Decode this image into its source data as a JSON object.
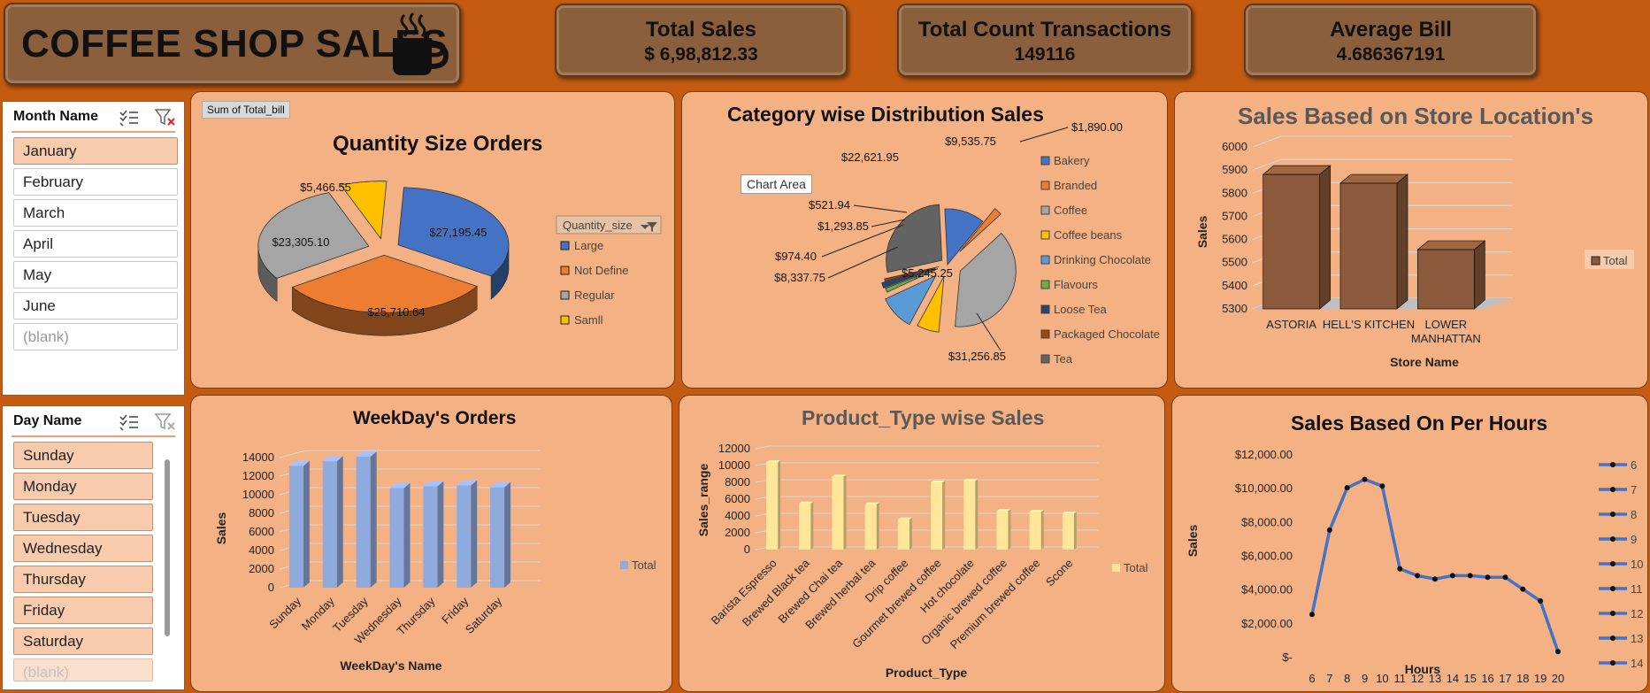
{
  "header": {
    "title": "COFFEE SHOP SALES",
    "kpis": [
      {
        "label": "Total Sales",
        "value": "$ 6,98,812.33"
      },
      {
        "label": "Total Count Transactions",
        "value": "149116"
      },
      {
        "label": "Average Bill",
        "value": "4.686367191"
      }
    ]
  },
  "month_slicer": {
    "title": "Month Name",
    "items": [
      "January",
      "February",
      "March",
      "April",
      "May",
      "June",
      "(blank)"
    ],
    "selected": "January"
  },
  "day_slicer": {
    "title": "Day Name",
    "items": [
      "Sunday",
      "Monday",
      "Tuesday",
      "Wednesday",
      "Thursday",
      "Friday",
      "Saturday",
      "(blank)"
    ]
  },
  "quantity_panel": {
    "field_button": "Sum of Total_bill",
    "legend_title": "Quantity_size",
    "chart_data": {
      "type": "pie",
      "title": "Quantity Size Orders",
      "categories": [
        "Large",
        "Not Define",
        "Regular",
        "Samll"
      ],
      "values": [
        27195.45,
        25710.64,
        23305.1,
        5466.55
      ],
      "labels": [
        "$27,195.45",
        "$25,710.64",
        "$23,305.10",
        "$5,466.55"
      ],
      "colors": [
        "#4472c4",
        "#ed7d31",
        "#a5a5a5",
        "#ffc000"
      ],
      "legend": "right"
    }
  },
  "category_panel": {
    "tooltip": "Chart Area",
    "chart_data": {
      "type": "pie",
      "title": "Category wise Distribution Sales",
      "categories": [
        "Bakery",
        "Branded",
        "Coffee",
        "Coffee beans",
        "Drinking Chocolate",
        "Flavours",
        "Loose Tea",
        "Packaged Chocolate",
        "Tea"
      ],
      "values": [
        9535.75,
        1890.0,
        31256.85,
        5245.25,
        8337.75,
        974.4,
        1293.85,
        521.94,
        22621.95
      ],
      "labels": [
        "$9,535.75",
        "$1,890.00",
        "$31,256.85",
        "$5,245.25",
        "$8,337.75",
        "$974.40",
        "$1,293.85",
        "$521.94",
        "$22,621.95"
      ],
      "colors": [
        "#4472c4",
        "#ed7d31",
        "#a5a5a5",
        "#ffc000",
        "#5b9bd5",
        "#70ad47",
        "#264478",
        "#9e480e",
        "#636363"
      ],
      "legend": "right"
    }
  },
  "store_panel": {
    "chart_data": {
      "type": "bar",
      "title": "Sales Based on Store Location's",
      "categories": [
        "ASTORIA",
        "HELL'S KITCHEN",
        "LOWER MANHATTAN"
      ],
      "category_lines": [
        [
          "ASTORIA"
        ],
        [
          "HELL'S KITCHEN"
        ],
        [
          "LOWER",
          "MANHATTAN"
        ]
      ],
      "values": [
        5881,
        5843,
        5556
      ],
      "ylim": [
        5300,
        6000
      ],
      "yticks": [
        "5300",
        "5400",
        "5500",
        "5600",
        "5700",
        "5800",
        "5900",
        "6000"
      ],
      "xlabel": "Store Name",
      "ylabel": "Sales",
      "series": [
        {
          "name": "Total",
          "color": "#8b5a3a"
        }
      ],
      "legend": "right"
    }
  },
  "weekday_panel": {
    "chart_data": {
      "type": "bar",
      "title": "WeekDay's Orders",
      "categories": [
        "Sunday",
        "Monday",
        "Tuesday",
        "Wednesday",
        "Thursday",
        "Friday",
        "Saturday"
      ],
      "values": [
        13100,
        13600,
        14100,
        10700,
        10900,
        11000,
        10800
      ],
      "ylim": [
        0,
        14000
      ],
      "yticks": [
        "0",
        "2000",
        "4000",
        "6000",
        "8000",
        "10000",
        "12000",
        "14000"
      ],
      "xlabel": "WeekDay's Name",
      "ylabel": "Sales",
      "series": [
        {
          "name": "Total",
          "color": "#8faadc"
        }
      ],
      "legend": "right"
    }
  },
  "product_panel": {
    "chart_data": {
      "type": "bar",
      "title": "Product_Type wise Sales",
      "categories": [
        "Barista Espresso",
        "Brewed Black tea",
        "Brewed Chai tea",
        "Brewed herbal tea",
        "Drip coffee",
        "Gourmet brewed coffee",
        "Hot chocolate",
        "Organic brewed coffee",
        "Premium brewed coffee",
        "Scone"
      ],
      "values": [
        10400,
        5500,
        8700,
        5400,
        3600,
        8000,
        8200,
        4600,
        4500,
        4300
      ],
      "ylim": [
        0,
        12000
      ],
      "yticks": [
        "0",
        "2000",
        "4000",
        "6000",
        "8000",
        "10000",
        "12000"
      ],
      "xlabel": "Product_Type",
      "ylabel": "Sales_range",
      "series": [
        {
          "name": "Total",
          "color": "#ffe699"
        }
      ],
      "legend": "right"
    }
  },
  "hours_panel": {
    "chart_data": {
      "type": "line",
      "title": "Sales Based On Per Hours",
      "x": [
        6,
        7,
        8,
        9,
        10,
        11,
        12,
        13,
        14,
        15,
        16,
        17,
        18,
        19,
        20
      ],
      "values": [
        2500,
        7500,
        10000,
        10500,
        10100,
        5200,
        4800,
        4600,
        4800,
        4800,
        4700,
        4700,
        4000,
        3300,
        300
      ],
      "ylim": [
        0,
        12000
      ],
      "yticks": [
        "$-",
        "$2,000.00",
        "$4,000.00",
        "$6,000.00",
        "$8,000.00",
        "$10,000.00",
        "$12,000.00"
      ],
      "xlabel": "Hours",
      "ylabel": "Sales",
      "legend_entries": [
        "6",
        "7",
        "8",
        "9",
        "10",
        "11",
        "12",
        "13",
        "14"
      ],
      "color": "#4472c4",
      "legend": "right"
    }
  }
}
